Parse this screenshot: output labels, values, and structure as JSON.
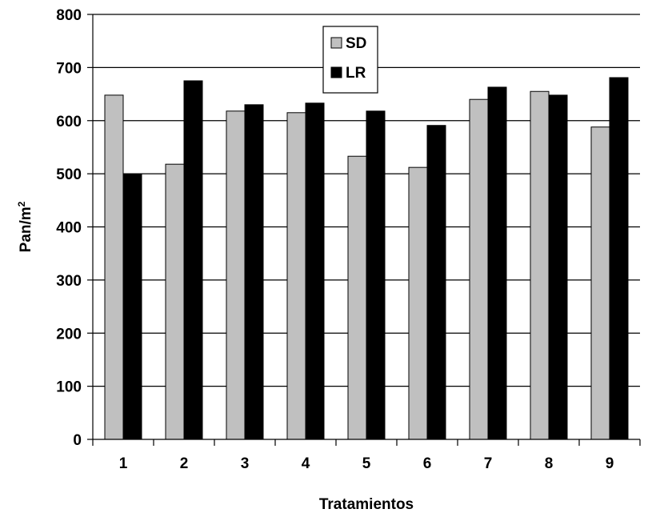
{
  "chart_data": {
    "type": "bar",
    "categories": [
      "1",
      "2",
      "3",
      "4",
      "5",
      "6",
      "7",
      "8",
      "9"
    ],
    "series": [
      {
        "name": "SD",
        "color": "#c0c0c0",
        "values": [
          648,
          518,
          618,
          615,
          533,
          512,
          640,
          655,
          588
        ]
      },
      {
        "name": "LR",
        "color": "#000000",
        "values": [
          500,
          675,
          630,
          633,
          618,
          591,
          663,
          648,
          681
        ]
      }
    ],
    "xlabel": "Tratamientos",
    "ylabel": {
      "base": "Pan/m",
      "superscript": "2"
    },
    "ylim": [
      0,
      800
    ],
    "yticks": [
      0,
      100,
      200,
      300,
      400,
      500,
      600,
      700,
      800
    ],
    "grid": true,
    "legend": "top-center"
  }
}
